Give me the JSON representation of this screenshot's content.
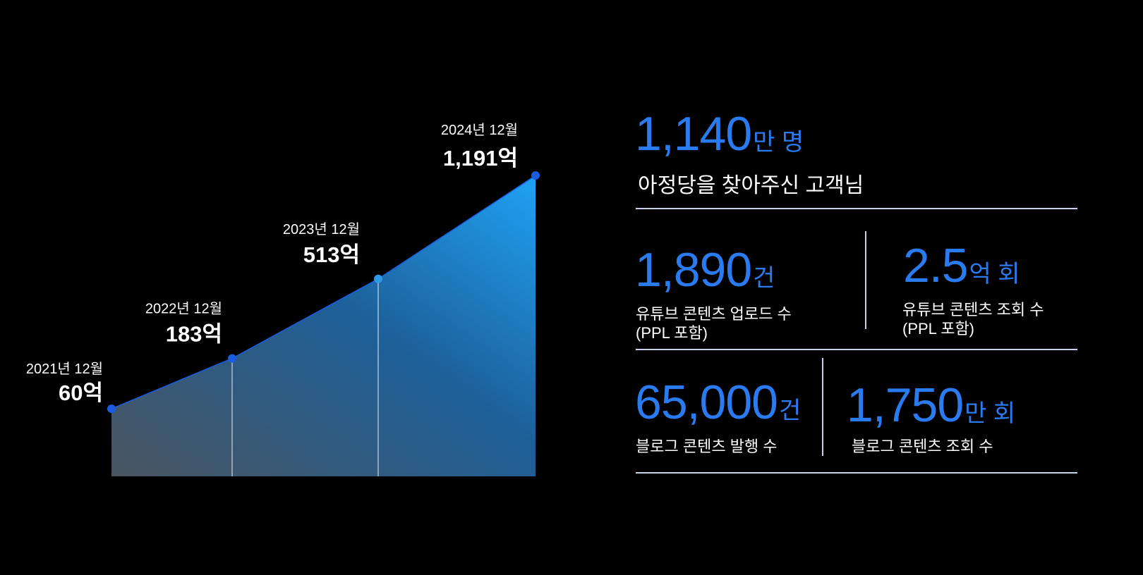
{
  "chart_data": {
    "type": "area",
    "categories": [
      "2021년 12월",
      "2022년 12월",
      "2023년 12월",
      "2024년 12월"
    ],
    "values": [
      60,
      183,
      513,
      1191
    ],
    "value_labels": [
      "60억",
      "183억",
      "513억",
      "1,191억"
    ],
    "unit": "억",
    "scale": "sqrt",
    "grid": false,
    "colors": {
      "fill_start": "#4a5560",
      "fill_end": "#1e9cf0",
      "point": "#1a5ce0"
    }
  },
  "stats": {
    "customers": {
      "value": "1,140",
      "unit": "만 명",
      "label": "아정당을 찾아주신 고객님"
    },
    "youtube_uploads": {
      "value": "1,890",
      "unit": "건",
      "label1": "유튜브 콘텐츠 업로드 수",
      "label2": "(PPL 포함)"
    },
    "youtube_views": {
      "value": "2.5",
      "unit": "억 회",
      "label1": "유튜브 콘텐츠 조회 수",
      "label2": "(PPL 포함)"
    },
    "blog_posts": {
      "value": "65,000",
      "unit": "건",
      "label": "블로그 콘텐츠 발행 수"
    },
    "blog_views": {
      "value": "1,750",
      "unit": "만 회",
      "label": "블로그 콘텐츠 조회 수"
    }
  },
  "accent_color": "#2b7bf0"
}
